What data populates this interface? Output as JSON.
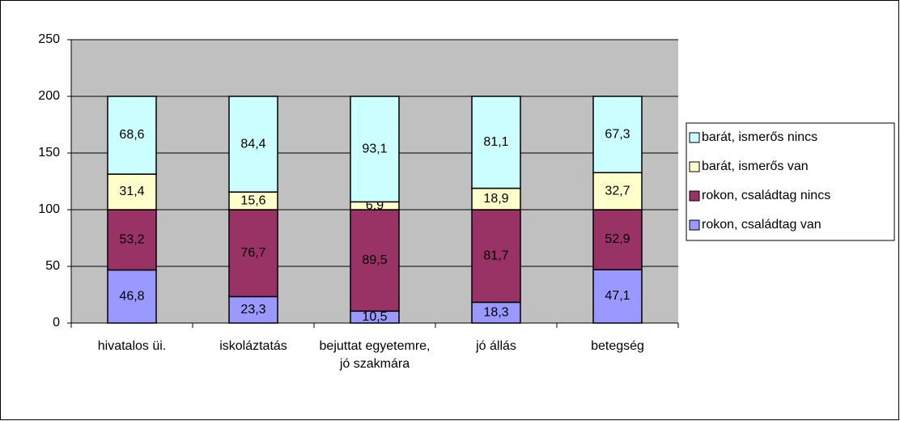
{
  "chart_data": {
    "type": "stacked_bar",
    "categories": [
      "hivatalos üi.",
      "iskoláztatás",
      "bejuttat egyetemre, jó szakmára",
      "jó állás",
      "betegség"
    ],
    "series": [
      {
        "name": "rokon, családtag van",
        "color": "#9999ff",
        "values": [
          46.8,
          23.3,
          10.5,
          18.3,
          47.1
        ],
        "value_labels": [
          "46,8",
          "23,3",
          "10,5",
          "18,3",
          "47,1"
        ]
      },
      {
        "name": "rokon, családtag nincs",
        "color": "#993366",
        "values": [
          53.2,
          76.7,
          89.5,
          81.7,
          52.9
        ],
        "value_labels": [
          "53,2",
          "76,7",
          "89,5",
          "81,7",
          "52,9"
        ]
      },
      {
        "name": "barát, ismerős van",
        "color": "#ffffcc",
        "values": [
          31.4,
          15.6,
          6.9,
          18.9,
          32.7
        ],
        "value_labels": [
          "31,4",
          "15,6",
          "6,9",
          "18,9",
          "32,7"
        ]
      },
      {
        "name": "barát, ismerős nincs",
        "color": "#ccffff",
        "values": [
          68.6,
          84.4,
          93.1,
          81.1,
          67.3
        ],
        "value_labels": [
          "68,6",
          "84,4",
          "93,1",
          "81,1",
          "67,3"
        ]
      }
    ],
    "ylim": [
      0,
      250
    ],
    "yticks": [
      0,
      50,
      100,
      150,
      200,
      250
    ],
    "grid": true,
    "plot_background": "#c0c0c0",
    "legend": "right"
  }
}
